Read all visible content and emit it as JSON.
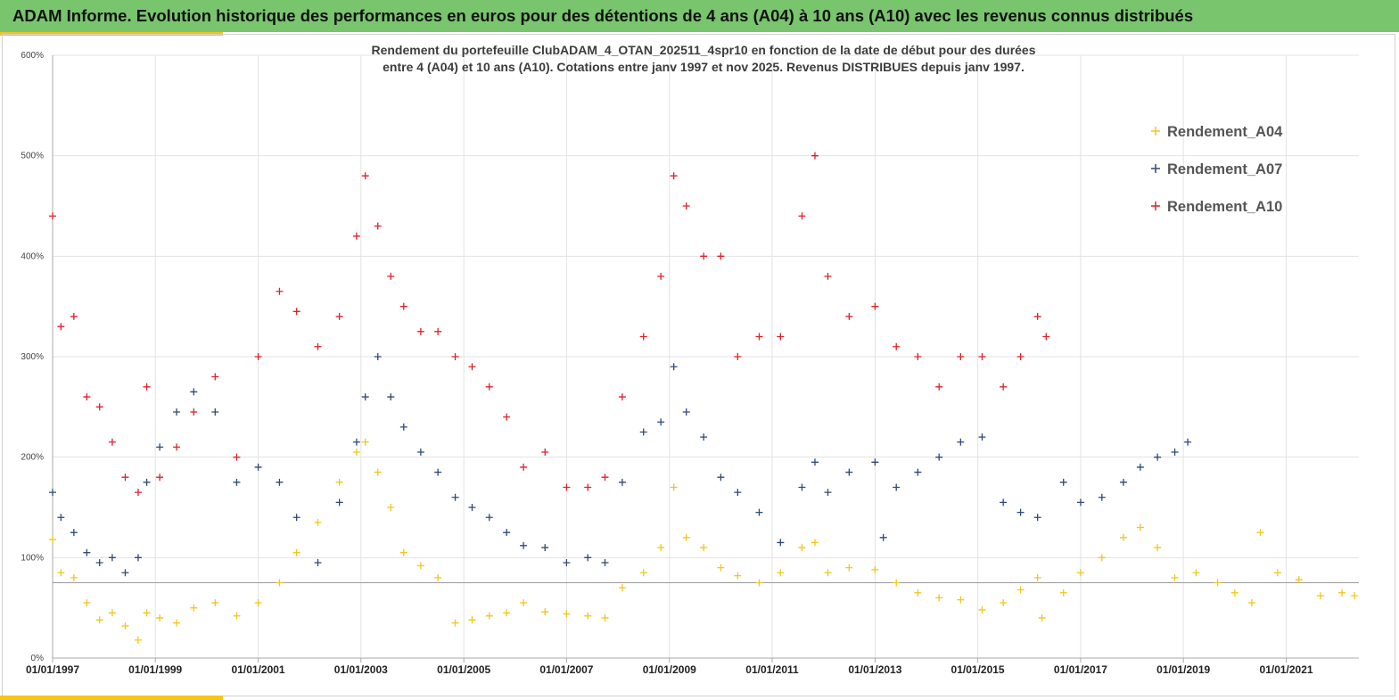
{
  "header": {
    "title": "ADAM Informe. Evolution historique des performances en euros pour des détentions de 4 ans (A04) à 10 ans (A10) avec les revenus connus distribués",
    "background": "#79c56e",
    "accent": "#f5c518"
  },
  "chart_data": {
    "type": "scatter",
    "title_lines": [
      "Rendement du portefeuille ClubADAM_4_OTAN_202511_4spr10  en fonction de la date de début pour des durées",
      "entre 4 (A04) et 10 ans (A10). Cotations entre janv 1997 et nov 2025. Revenus DISTRIBUES depuis janv 1997."
    ],
    "marker": "+",
    "x_range": [
      "1997-01-01",
      "2022-06-01"
    ],
    "ylim": [
      0,
      600
    ],
    "y_ticks": [
      "0%",
      "100%",
      "200%",
      "300%",
      "400%",
      "500%",
      "600%"
    ],
    "x_ticks": [
      "01/01/1997",
      "01/01/1999",
      "01/01/2001",
      "01/01/2003",
      "01/01/2005",
      "01/01/2007",
      "01/01/2009",
      "01/01/2011",
      "01/01/2013",
      "01/01/2015",
      "01/01/2017",
      "01/01/2019",
      "01/01/2021"
    ],
    "gridlines": "vertical and horizontal",
    "reference_line": 75,
    "legend_position": "top-right",
    "series": [
      {
        "name": "Rendement_A04",
        "color": "#f5c518",
        "points": [
          [
            "1997-01-01",
            118
          ],
          [
            "1997-03-01",
            85
          ],
          [
            "1997-06-01",
            80
          ],
          [
            "1997-09-01",
            55
          ],
          [
            "1997-12-01",
            38
          ],
          [
            "1998-03-01",
            45
          ],
          [
            "1998-06-01",
            32
          ],
          [
            "1998-09-01",
            18
          ],
          [
            "1998-11-01",
            45
          ],
          [
            "1999-02-01",
            40
          ],
          [
            "1999-06-01",
            35
          ],
          [
            "1999-10-01",
            50
          ],
          [
            "2000-03-01",
            55
          ],
          [
            "2000-08-01",
            42
          ],
          [
            "2001-01-01",
            55
          ],
          [
            "2001-06-01",
            75
          ],
          [
            "2001-10-01",
            105
          ],
          [
            "2002-03-01",
            135
          ],
          [
            "2002-08-01",
            175
          ],
          [
            "2002-12-01",
            205
          ],
          [
            "2003-02-01",
            215
          ],
          [
            "2003-05-01",
            185
          ],
          [
            "2003-08-01",
            150
          ],
          [
            "2003-11-01",
            105
          ],
          [
            "2004-03-01",
            92
          ],
          [
            "2004-07-01",
            80
          ],
          [
            "2004-11-01",
            35
          ],
          [
            "2005-03-01",
            38
          ],
          [
            "2005-07-01",
            42
          ],
          [
            "2005-11-01",
            45
          ],
          [
            "2006-03-01",
            55
          ],
          [
            "2006-08-01",
            46
          ],
          [
            "2007-01-01",
            44
          ],
          [
            "2007-06-01",
            42
          ],
          [
            "2007-10-01",
            40
          ],
          [
            "2008-02-01",
            70
          ],
          [
            "2008-07-01",
            85
          ],
          [
            "2008-11-01",
            110
          ],
          [
            "2009-02-01",
            170
          ],
          [
            "2009-05-01",
            120
          ],
          [
            "2009-09-01",
            110
          ],
          [
            "2010-01-01",
            90
          ],
          [
            "2010-05-01",
            82
          ],
          [
            "2010-10-01",
            75
          ],
          [
            "2011-03-01",
            85
          ],
          [
            "2011-08-01",
            110
          ],
          [
            "2011-11-01",
            115
          ],
          [
            "2012-02-01",
            85
          ],
          [
            "2012-07-01",
            90
          ],
          [
            "2013-01-01",
            88
          ],
          [
            "2013-06-01",
            75
          ],
          [
            "2013-11-01",
            65
          ],
          [
            "2014-04-01",
            60
          ],
          [
            "2014-09-01",
            58
          ],
          [
            "2015-02-01",
            48
          ],
          [
            "2015-07-01",
            55
          ],
          [
            "2015-11-01",
            68
          ],
          [
            "2016-03-01",
            80
          ],
          [
            "2016-04-01",
            40
          ],
          [
            "2016-09-01",
            65
          ],
          [
            "2017-01-01",
            85
          ],
          [
            "2017-06-01",
            100
          ],
          [
            "2017-11-01",
            120
          ],
          [
            "2018-03-01",
            130
          ],
          [
            "2018-07-01",
            110
          ],
          [
            "2018-11-01",
            80
          ],
          [
            "2019-04-01",
            85
          ],
          [
            "2019-09-01",
            75
          ],
          [
            "2020-01-01",
            65
          ],
          [
            "2020-05-01",
            55
          ],
          [
            "2020-07-01",
            125
          ],
          [
            "2020-11-01",
            85
          ],
          [
            "2021-04-01",
            78
          ],
          [
            "2021-09-01",
            62
          ],
          [
            "2022-02-01",
            65
          ],
          [
            "2022-05-01",
            62
          ]
        ]
      },
      {
        "name": "Rendement_A07",
        "color": "#2e4a7a",
        "points": [
          [
            "1997-01-01",
            165
          ],
          [
            "1997-03-01",
            140
          ],
          [
            "1997-06-01",
            125
          ],
          [
            "1997-09-01",
            105
          ],
          [
            "1997-12-01",
            95
          ],
          [
            "1998-03-01",
            100
          ],
          [
            "1998-06-01",
            85
          ],
          [
            "1998-09-01",
            100
          ],
          [
            "1998-11-01",
            175
          ],
          [
            "1999-02-01",
            210
          ],
          [
            "1999-06-01",
            245
          ],
          [
            "1999-10-01",
            265
          ],
          [
            "2000-03-01",
            245
          ],
          [
            "2000-08-01",
            175
          ],
          [
            "2001-01-01",
            190
          ],
          [
            "2001-06-01",
            175
          ],
          [
            "2001-10-01",
            140
          ],
          [
            "2002-03-01",
            95
          ],
          [
            "2002-08-01",
            155
          ],
          [
            "2002-12-01",
            215
          ],
          [
            "2003-02-01",
            260
          ],
          [
            "2003-05-01",
            300
          ],
          [
            "2003-08-01",
            260
          ],
          [
            "2003-11-01",
            230
          ],
          [
            "2004-03-01",
            205
          ],
          [
            "2004-07-01",
            185
          ],
          [
            "2004-11-01",
            160
          ],
          [
            "2005-03-01",
            150
          ],
          [
            "2005-07-01",
            140
          ],
          [
            "2005-11-01",
            125
          ],
          [
            "2006-03-01",
            112
          ],
          [
            "2006-08-01",
            110
          ],
          [
            "2007-01-01",
            95
          ],
          [
            "2007-06-01",
            100
          ],
          [
            "2007-10-01",
            95
          ],
          [
            "2008-02-01",
            175
          ],
          [
            "2008-07-01",
            225
          ],
          [
            "2008-11-01",
            235
          ],
          [
            "2009-02-01",
            290
          ],
          [
            "2009-05-01",
            245
          ],
          [
            "2009-09-01",
            220
          ],
          [
            "2010-01-01",
            180
          ],
          [
            "2010-05-01",
            165
          ],
          [
            "2010-10-01",
            145
          ],
          [
            "2011-03-01",
            115
          ],
          [
            "2011-08-01",
            170
          ],
          [
            "2011-11-01",
            195
          ],
          [
            "2012-02-01",
            165
          ],
          [
            "2012-07-01",
            185
          ],
          [
            "2013-01-01",
            195
          ],
          [
            "2013-03-01",
            120
          ],
          [
            "2013-06-01",
            170
          ],
          [
            "2013-11-01",
            185
          ],
          [
            "2014-04-01",
            200
          ],
          [
            "2014-09-01",
            215
          ],
          [
            "2015-02-01",
            220
          ],
          [
            "2015-07-01",
            155
          ],
          [
            "2015-11-01",
            145
          ],
          [
            "2016-03-01",
            140
          ],
          [
            "2016-09-01",
            175
          ],
          [
            "2017-01-01",
            155
          ],
          [
            "2017-06-01",
            160
          ],
          [
            "2017-11-01",
            175
          ],
          [
            "2018-03-01",
            190
          ],
          [
            "2018-07-01",
            200
          ],
          [
            "2018-11-01",
            205
          ],
          [
            "2019-02-01",
            215
          ]
        ]
      },
      {
        "name": "Rendement_A10",
        "color": "#e0202a",
        "points": [
          [
            "1997-01-01",
            440
          ],
          [
            "1997-03-01",
            330
          ],
          [
            "1997-06-01",
            340
          ],
          [
            "1997-09-01",
            260
          ],
          [
            "1997-12-01",
            250
          ],
          [
            "1998-03-01",
            215
          ],
          [
            "1998-06-01",
            180
          ],
          [
            "1998-09-01",
            165
          ],
          [
            "1998-11-01",
            270
          ],
          [
            "1999-02-01",
            180
          ],
          [
            "1999-06-01",
            210
          ],
          [
            "1999-10-01",
            245
          ],
          [
            "2000-03-01",
            280
          ],
          [
            "2000-08-01",
            200
          ],
          [
            "2001-01-01",
            300
          ],
          [
            "2001-06-01",
            365
          ],
          [
            "2001-10-01",
            345
          ],
          [
            "2002-03-01",
            310
          ],
          [
            "2002-08-01",
            340
          ],
          [
            "2002-12-01",
            420
          ],
          [
            "2003-02-01",
            480
          ],
          [
            "2003-05-01",
            430
          ],
          [
            "2003-08-01",
            380
          ],
          [
            "2003-11-01",
            350
          ],
          [
            "2004-03-01",
            325
          ],
          [
            "2004-07-01",
            325
          ],
          [
            "2004-11-01",
            300
          ],
          [
            "2005-03-01",
            290
          ],
          [
            "2005-07-01",
            270
          ],
          [
            "2005-11-01",
            240
          ],
          [
            "2006-03-01",
            190
          ],
          [
            "2006-08-01",
            205
          ],
          [
            "2007-01-01",
            170
          ],
          [
            "2007-06-01",
            170
          ],
          [
            "2007-10-01",
            180
          ],
          [
            "2008-02-01",
            260
          ],
          [
            "2008-07-01",
            320
          ],
          [
            "2008-11-01",
            380
          ],
          [
            "2009-02-01",
            480
          ],
          [
            "2009-05-01",
            450
          ],
          [
            "2009-09-01",
            400
          ],
          [
            "2010-01-01",
            400
          ],
          [
            "2010-05-01",
            300
          ],
          [
            "2010-10-01",
            320
          ],
          [
            "2011-03-01",
            320
          ],
          [
            "2011-08-01",
            440
          ],
          [
            "2011-11-01",
            500
          ],
          [
            "2012-02-01",
            380
          ],
          [
            "2012-07-01",
            340
          ],
          [
            "2013-01-01",
            350
          ],
          [
            "2013-06-01",
            310
          ],
          [
            "2013-11-01",
            300
          ],
          [
            "2014-04-01",
            270
          ],
          [
            "2014-09-01",
            300
          ],
          [
            "2015-02-01",
            300
          ],
          [
            "2015-07-01",
            270
          ],
          [
            "2015-11-01",
            300
          ],
          [
            "2016-03-01",
            340
          ],
          [
            "2016-05-01",
            320
          ]
        ]
      }
    ]
  }
}
